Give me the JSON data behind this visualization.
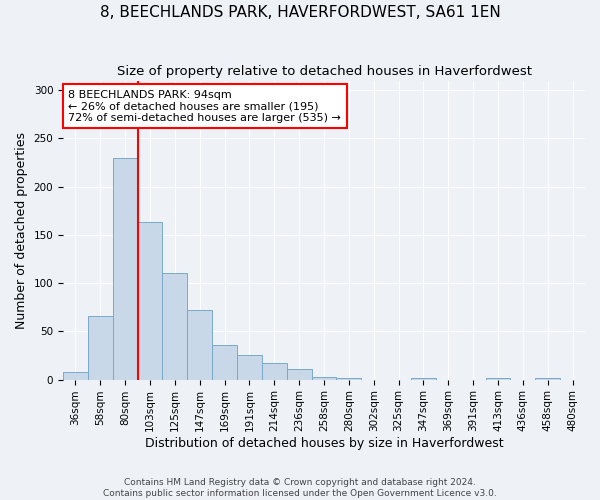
{
  "title": "8, BEECHLANDS PARK, HAVERFORDWEST, SA61 1EN",
  "subtitle": "Size of property relative to detached houses in Haverfordwest",
  "xlabel": "Distribution of detached houses by size in Haverfordwest",
  "ylabel": "Number of detached properties",
  "categories": [
    "36sqm",
    "58sqm",
    "80sqm",
    "103sqm",
    "125sqm",
    "147sqm",
    "169sqm",
    "191sqm",
    "214sqm",
    "236sqm",
    "258sqm",
    "280sqm",
    "302sqm",
    "325sqm",
    "347sqm",
    "369sqm",
    "391sqm",
    "413sqm",
    "436sqm",
    "458sqm",
    "480sqm"
  ],
  "values": [
    8,
    66,
    230,
    163,
    110,
    72,
    36,
    25,
    17,
    11,
    3,
    2,
    0,
    0,
    2,
    0,
    0,
    2,
    0,
    2,
    0
  ],
  "bar_color": "#c8d8e8",
  "bar_edge_color": "#7aaac8",
  "background_color": "#eef2f7",
  "vline_x_index": 2.5,
  "vline_color": "red",
  "annotation_text": "8 BEECHLANDS PARK: 94sqm\n← 26% of detached houses are smaller (195)\n72% of semi-detached houses are larger (535) →",
  "annotation_box_color": "white",
  "annotation_box_edge_color": "red",
  "ylim": [
    0,
    310
  ],
  "yticks": [
    0,
    50,
    100,
    150,
    200,
    250,
    300
  ],
  "footer_line1": "Contains HM Land Registry data © Crown copyright and database right 2024.",
  "footer_line2": "Contains public sector information licensed under the Open Government Licence v3.0.",
  "title_fontsize": 11,
  "subtitle_fontsize": 9.5,
  "xlabel_fontsize": 9,
  "ylabel_fontsize": 9,
  "annotation_fontsize": 8,
  "tick_fontsize": 7.5
}
